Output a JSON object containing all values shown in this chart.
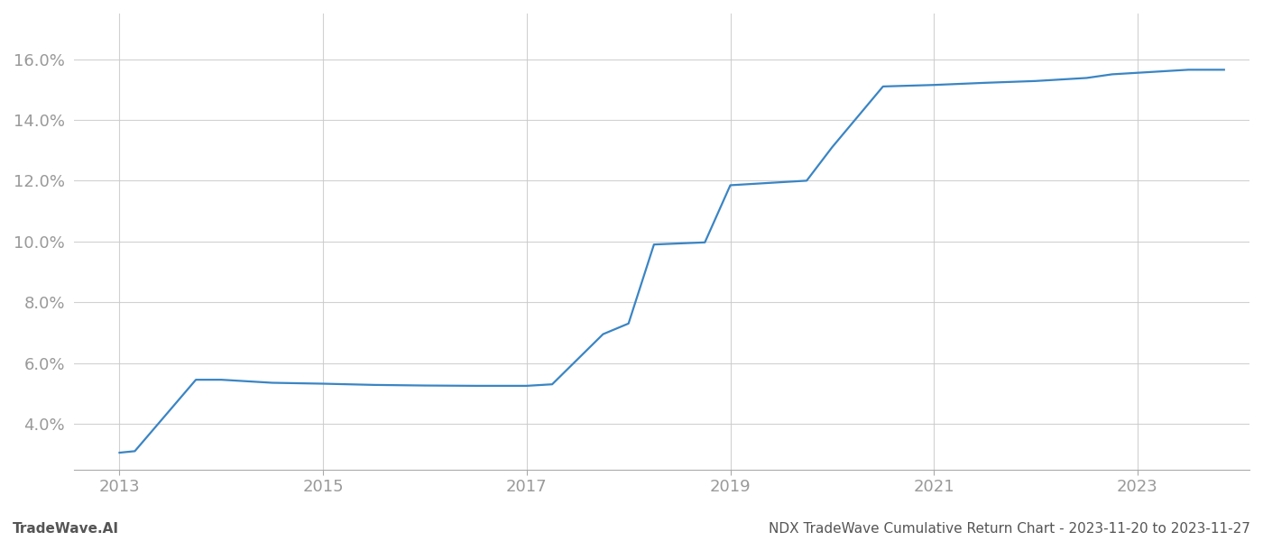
{
  "footer_left": "TradeWave.AI",
  "footer_right": "NDX TradeWave Cumulative Return Chart - 2023-11-20 to 2023-11-27",
  "line_color": "#3a85c4",
  "background_color": "#ffffff",
  "grid_color": "#cccccc",
  "x_values": [
    2013.0,
    2013.15,
    2013.75,
    2014.0,
    2014.5,
    2015.0,
    2015.5,
    2016.0,
    2016.5,
    2016.75,
    2017.0,
    2017.25,
    2017.75,
    2018.0,
    2018.25,
    2018.75,
    2019.0,
    2019.25,
    2019.75,
    2020.0,
    2020.5,
    2021.0,
    2021.5,
    2022.0,
    2022.5,
    2022.75,
    2023.0,
    2023.5,
    2023.85
  ],
  "y_values": [
    3.05,
    3.1,
    5.45,
    5.45,
    5.35,
    5.32,
    5.28,
    5.26,
    5.25,
    5.25,
    5.25,
    5.3,
    6.95,
    7.3,
    9.9,
    9.97,
    11.85,
    11.9,
    12.0,
    13.1,
    15.1,
    15.15,
    15.22,
    15.28,
    15.38,
    15.5,
    15.55,
    15.65,
    15.65
  ],
  "xlim": [
    2012.55,
    2024.1
  ],
  "ylim": [
    2.5,
    17.5
  ],
  "yticks": [
    4.0,
    6.0,
    8.0,
    10.0,
    12.0,
    14.0,
    16.0
  ],
  "xticks": [
    2013,
    2015,
    2017,
    2019,
    2021,
    2023
  ],
  "tick_color": "#999999",
  "line_width": 1.6,
  "spine_color": "#aaaaaa",
  "footer_fontsize": 11,
  "tick_fontsize": 13
}
